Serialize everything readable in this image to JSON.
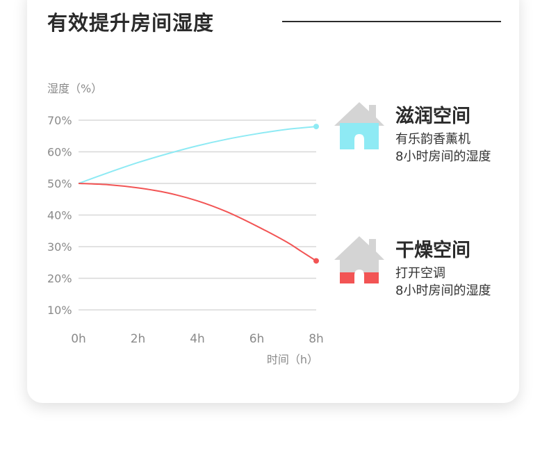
{
  "title": "有效提升房间湿度",
  "colors": {
    "wet": "#8eeaf4",
    "dry": "#f25454",
    "grid": "#d8d8d8",
    "axis_text": "#8a8a8a",
    "house": "#d4d4d4"
  },
  "legend": [
    {
      "name": "滋润空间",
      "lines": [
        "有乐韵香薰机",
        "8小时房间的湿度"
      ],
      "icon": "house-icon",
      "color": "#8eeaf4"
    },
    {
      "name": "干燥空间",
      "lines": [
        "打开空调",
        "8小时房间的湿度"
      ],
      "icon": "house-icon",
      "color": "#f25454"
    }
  ],
  "chart_data": {
    "type": "line",
    "ylabel": "湿度（%）",
    "xlabel": "时间（h）",
    "x_ticks": [
      "0h",
      "2h",
      "4h",
      "6h",
      "8h"
    ],
    "y_ticks": [
      "10%",
      "20%",
      "30%",
      "40%",
      "50%",
      "60%",
      "70%"
    ],
    "xlim": [
      0,
      8
    ],
    "ylim": [
      10,
      70
    ],
    "grid": true,
    "series": [
      {
        "name": "滋润空间",
        "color": "#8eeaf4",
        "x": [
          0,
          1,
          2,
          3,
          4,
          5,
          6,
          7,
          8
        ],
        "y": [
          50,
          53.4,
          56.6,
          59.4,
          61.9,
          64.0,
          65.7,
          67.1,
          68
        ]
      },
      {
        "name": "干燥空间",
        "color": "#f25454",
        "x": [
          0,
          1,
          2,
          3,
          4,
          5,
          6,
          7,
          7.5,
          8
        ],
        "y": [
          50,
          49.6,
          48.6,
          47.0,
          44.5,
          41.0,
          36.5,
          31.5,
          28.5,
          25.5
        ]
      }
    ]
  }
}
